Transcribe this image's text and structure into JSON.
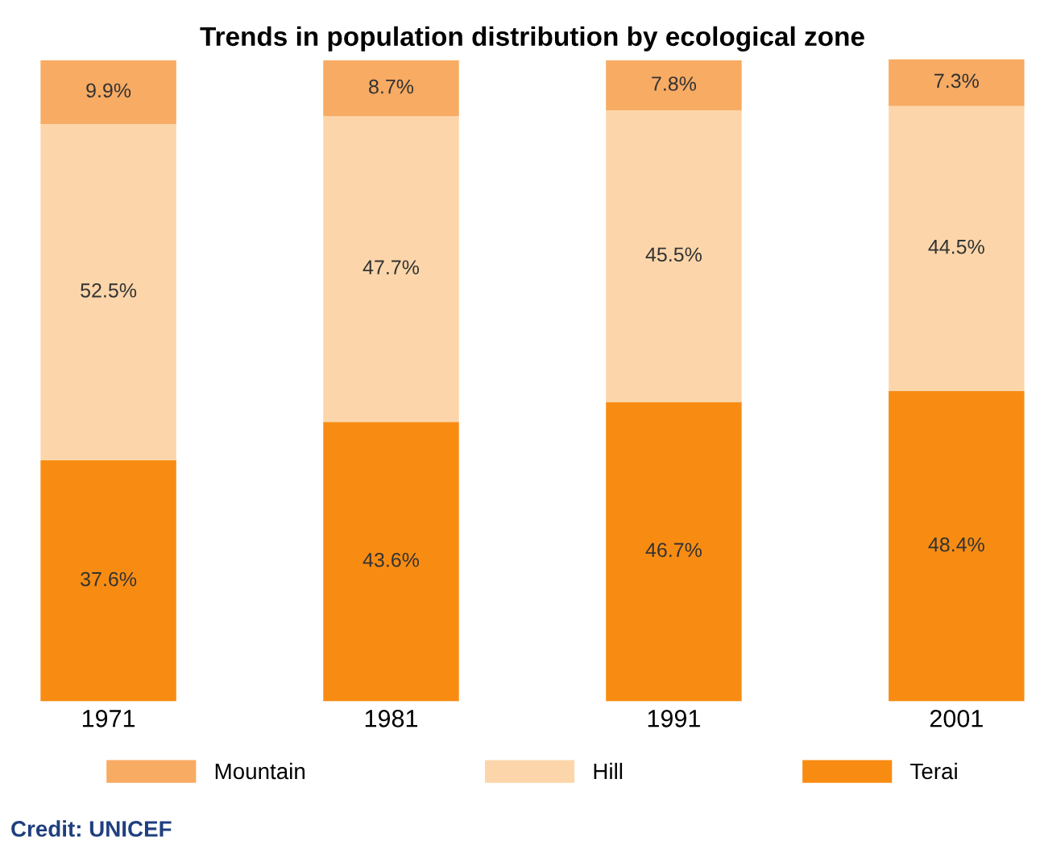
{
  "chart_data": {
    "type": "bar",
    "title": "Trends in population distribution by ecological zone",
    "categories": [
      "1971",
      "1981",
      "1991",
      "2001"
    ],
    "stacked": true,
    "series": [
      {
        "name": "Terai",
        "color": "#f88c12",
        "values": [
          37.6,
          43.6,
          46.7,
          48.4
        ],
        "value_labels": [
          "37.6%",
          "43.6%",
          "46.7%",
          "48.4%"
        ]
      },
      {
        "name": "Hill",
        "color": "#fcd6aa",
        "values": [
          52.5,
          47.7,
          45.5,
          44.5
        ],
        "value_labels": [
          "52.5%",
          "47.7%",
          "45.5%",
          "44.5%"
        ]
      },
      {
        "name": "Mountain",
        "color": "#f8ab63",
        "values": [
          9.9,
          8.7,
          7.8,
          7.3
        ],
        "value_labels": [
          "9.9%",
          "8.7%",
          "7.8%",
          "7.3%"
        ]
      }
    ],
    "legend": "bottom",
    "tick_labels": "x",
    "annotations": [
      "Credit: UNICEF"
    ]
  }
}
